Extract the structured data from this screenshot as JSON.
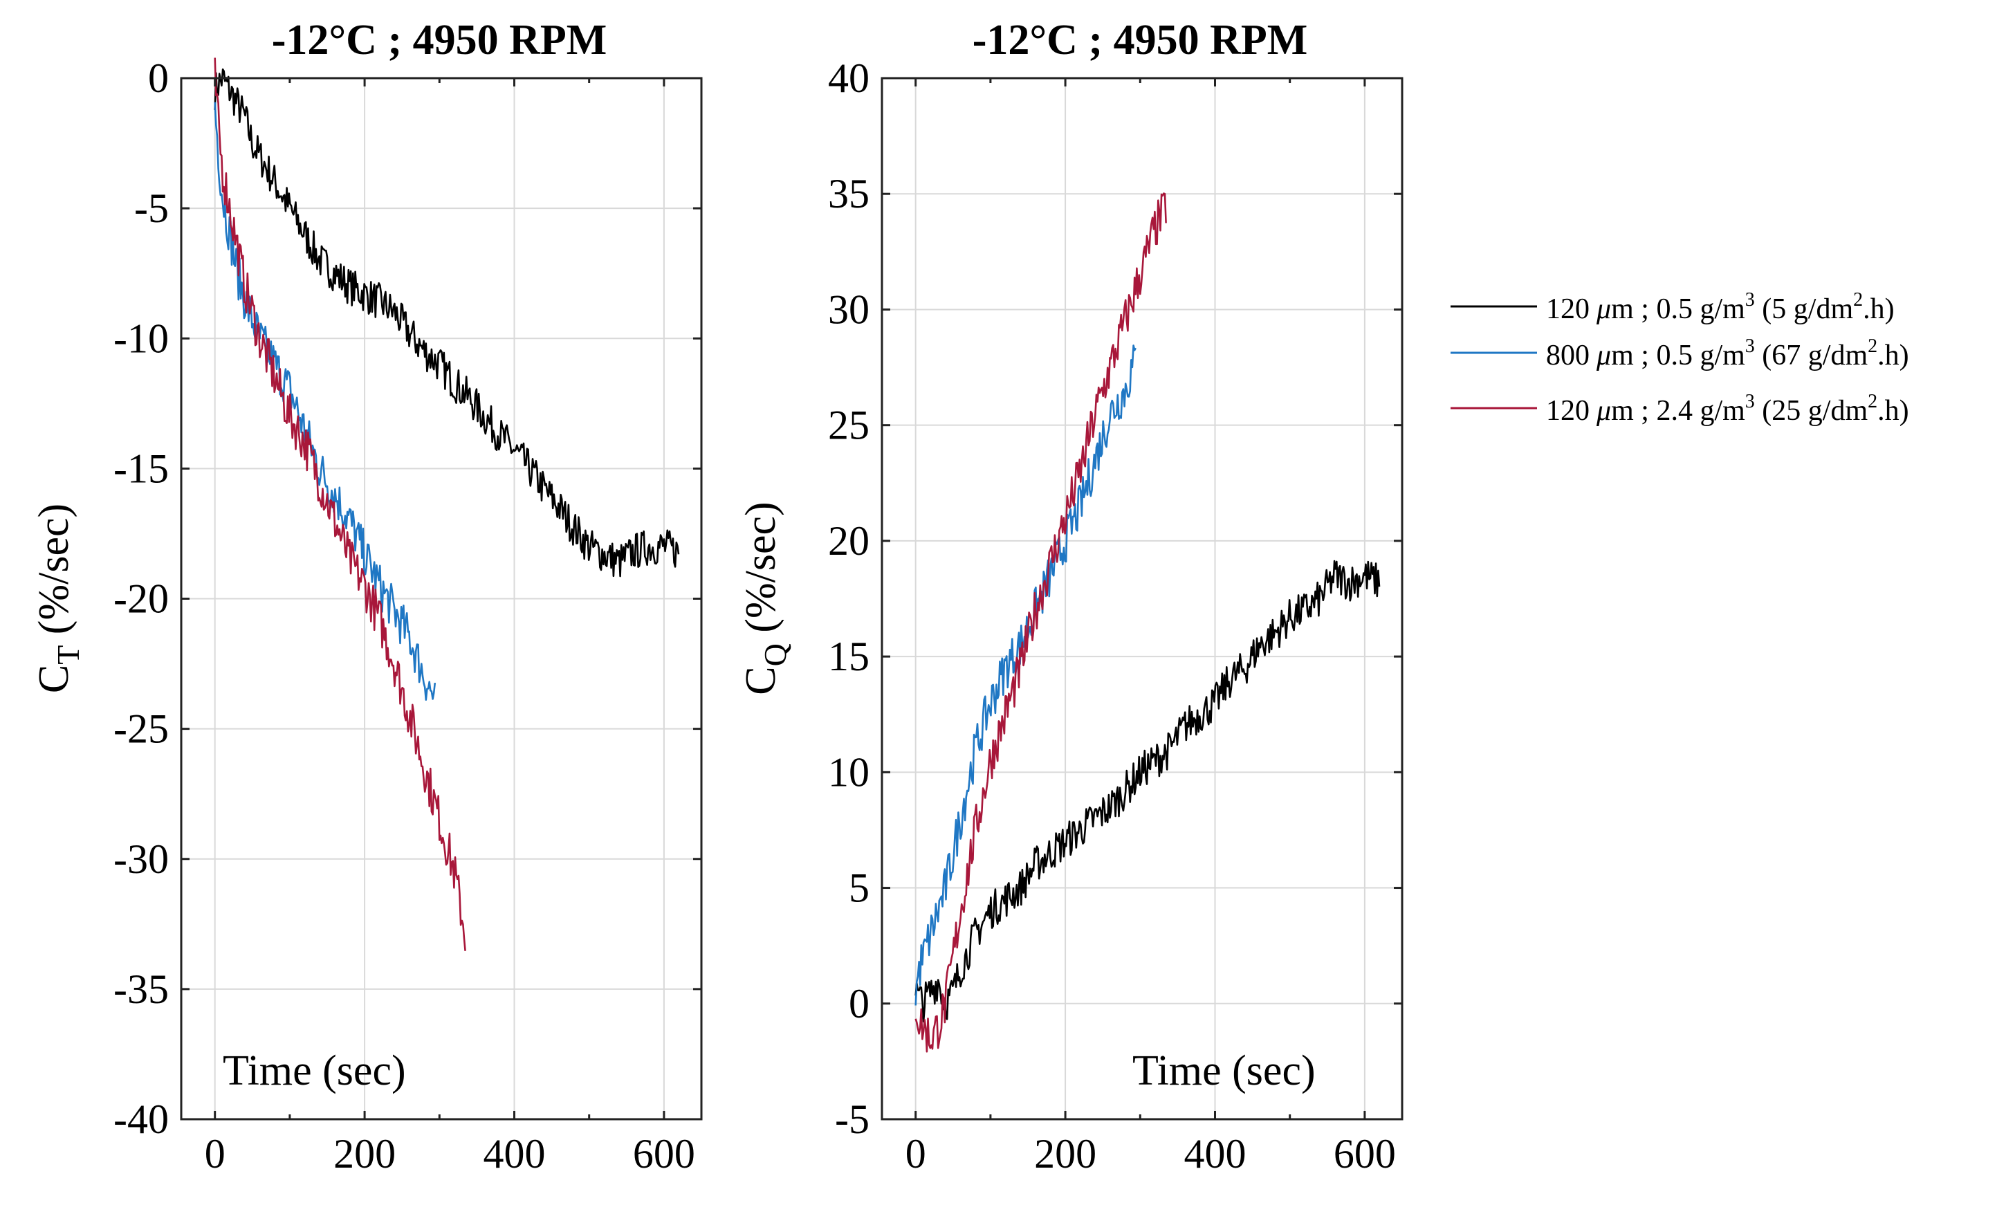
{
  "legend": {
    "entries": [
      {
        "size": "120",
        "lwc": "0.5",
        "rate": "5",
        "color": "#000000"
      },
      {
        "size": "800",
        "lwc": "0.5",
        "rate": "67",
        "color": "#1f77c4"
      },
      {
        "size": "120",
        "lwc": "2.4",
        "rate": "25",
        "color": "#a8173a"
      }
    ],
    "mu": "μ",
    "m_sep": "m ; ",
    "gpm": " g/m",
    "sup3": "3",
    "paren_open": " (",
    "gdm": " g/dm",
    "sup2": "2",
    "h_close": ".h)"
  },
  "chart_data": [
    {
      "type": "line",
      "title": "-12°C ; 4950 RPM",
      "xlabel": "Time (sec)",
      "ylabel_main": "C",
      "ylabel_sub": "T",
      "ylabel_unit": " (%/sec)",
      "xlim": [
        -45,
        650
      ],
      "ylim": [
        -40,
        0
      ],
      "xticks": [
        0,
        200,
        400,
        600
      ],
      "yticks": [
        0,
        -5,
        -10,
        -15,
        -20,
        -25,
        -30,
        -35,
        -40
      ],
      "series": [
        {
          "name": "120 μm ; 0.5 g/m3 (5 g/dm2.h)",
          "color": "#000000",
          "x": [
            0,
            5,
            10,
            20,
            30,
            40,
            50,
            60,
            80,
            100,
            120,
            140,
            160,
            180,
            200,
            220,
            240,
            260,
            280,
            300,
            320,
            340,
            360,
            380,
            400,
            420,
            440,
            460,
            480,
            500,
            520,
            540,
            560,
            580,
            600,
            620
          ],
          "y": [
            -0.5,
            -0.2,
            0,
            -0.5,
            -1,
            -1.5,
            -2.5,
            -3,
            -4,
            -5,
            -6,
            -7,
            -7.5,
            -8,
            -8.3,
            -8.6,
            -9,
            -9.8,
            -10.5,
            -11,
            -11.7,
            -12.3,
            -13,
            -13.7,
            -14.3,
            -15,
            -15.8,
            -16.5,
            -17.3,
            -18,
            -18.3,
            -18.6,
            -18.2,
            -18,
            -18,
            -18.2
          ]
        },
        {
          "name": "800 μm ; 0.5 g/m3 (67 g/dm2.h)",
          "color": "#1f77c4",
          "x": [
            0,
            5,
            10,
            20,
            30,
            40,
            50,
            60,
            80,
            100,
            120,
            140,
            160,
            180,
            200,
            220,
            240,
            260,
            280,
            295
          ],
          "y": [
            -1,
            -3,
            -4.5,
            -6,
            -7.5,
            -8.5,
            -9.3,
            -10,
            -11,
            -12,
            -13.5,
            -15,
            -16,
            -17,
            -18.3,
            -19.5,
            -20.5,
            -21.5,
            -23,
            -24
          ]
        },
        {
          "name": "120 μm ; 2.4 g/m3 (25 g/dm2.h)",
          "color": "#a8173a",
          "x": [
            0,
            5,
            10,
            20,
            30,
            40,
            50,
            60,
            80,
            100,
            120,
            140,
            160,
            180,
            200,
            220,
            240,
            260,
            280,
            300,
            320,
            335
          ],
          "y": [
            0,
            -2,
            -3.5,
            -5,
            -6.5,
            -8,
            -9,
            -10,
            -11.5,
            -13,
            -14,
            -15.5,
            -17,
            -18.5,
            -19.5,
            -20.8,
            -22.5,
            -24.5,
            -26.5,
            -28.5,
            -30.5,
            -33
          ]
        }
      ]
    },
    {
      "type": "line",
      "title": "-12°C ; 4950 RPM",
      "xlabel": "Time (sec)",
      "ylabel_main": "C",
      "ylabel_sub": "Q",
      "ylabel_unit": " (%/sec)",
      "xlim": [
        -45,
        650
      ],
      "ylim": [
        -5,
        40
      ],
      "xticks": [
        0,
        200,
        400,
        600
      ],
      "yticks": [
        40,
        35,
        30,
        25,
        20,
        15,
        10,
        5,
        0,
        -5
      ],
      "series": [
        {
          "name": "120 μm ; 0.5 g/m3 (5 g/dm2.h)",
          "color": "#000000",
          "x": [
            0,
            10,
            20,
            30,
            40,
            50,
            60,
            80,
            100,
            120,
            140,
            160,
            180,
            200,
            220,
            240,
            260,
            280,
            300,
            320,
            340,
            360,
            380,
            400,
            420,
            440,
            460,
            480,
            500,
            520,
            540,
            560,
            580,
            600,
            620
          ],
          "y": [
            0.5,
            0,
            0.5,
            1,
            0,
            0.5,
            1.5,
            3,
            4,
            4.5,
            5,
            6,
            6.5,
            7,
            7.5,
            8,
            8.5,
            9.2,
            10,
            10.5,
            11,
            12,
            12.5,
            13,
            14,
            14.5,
            15.5,
            16,
            16.7,
            17,
            17.5,
            18.5,
            18.2,
            18.5,
            18.2
          ]
        },
        {
          "name": "800 μm ; 0.5 g/m3 (67 g/dm2.h)",
          "color": "#1f77c4",
          "x": [
            0,
            5,
            10,
            20,
            30,
            40,
            50,
            60,
            80,
            100,
            120,
            140,
            160,
            180,
            200,
            220,
            240,
            260,
            280,
            295
          ],
          "y": [
            0.5,
            1.5,
            2,
            3,
            4,
            5,
            6.5,
            8,
            11,
            13,
            14.5,
            15.5,
            17,
            18.5,
            20,
            21.5,
            23.5,
            25.5,
            26.5,
            28
          ]
        },
        {
          "name": "120 μm ; 2.4 g/m3 (25 g/dm2.h)",
          "color": "#a8173a",
          "x": [
            0,
            5,
            10,
            20,
            30,
            40,
            50,
            60,
            80,
            100,
            120,
            140,
            160,
            180,
            200,
            220,
            240,
            260,
            280,
            300,
            320,
            335
          ],
          "y": [
            0,
            -0.8,
            -1,
            -1.5,
            -1,
            0,
            2,
            4,
            7.5,
            10.5,
            12.5,
            14.5,
            17,
            19,
            21,
            23,
            25.5,
            27.5,
            29.5,
            31.5,
            33.5,
            34.5
          ]
        }
      ]
    }
  ]
}
